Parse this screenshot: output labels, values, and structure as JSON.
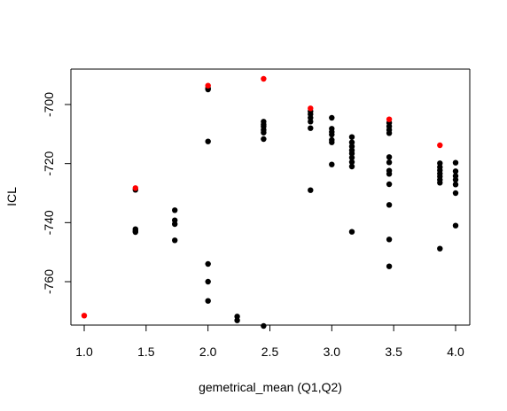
{
  "chart_data": {
    "type": "scatter",
    "xlabel": "gemetrical_mean (Q1,Q2)",
    "ylabel": "ICL",
    "xlim": [
      0.95,
      4.05
    ],
    "ylim": [
      -775,
      -688
    ],
    "x_ticks": [
      1.0,
      1.5,
      2.0,
      2.5,
      3.0,
      3.5,
      4.0
    ],
    "x_tick_labels": [
      "1.0",
      "1.5",
      "2.0",
      "2.5",
      "3.0",
      "3.5",
      "4.0"
    ],
    "y_ticks": [
      -760,
      -740,
      -720,
      -700
    ],
    "y_tick_labels": [
      "-760",
      "-740",
      "-720",
      "-700"
    ],
    "series": [
      {
        "color": "#000000",
        "points": [
          [
            1.414,
            -728.9
          ],
          [
            1.414,
            -742.2
          ],
          [
            1.414,
            -742.8
          ],
          [
            1.414,
            -743.2
          ],
          [
            1.732,
            -735.8
          ],
          [
            1.732,
            -739.2
          ],
          [
            1.732,
            -740.5
          ],
          [
            1.732,
            -746.0
          ],
          [
            2.0,
            -694.5
          ],
          [
            2.0,
            -694.9
          ],
          [
            2.0,
            -712.5
          ],
          [
            2.0,
            -754.0
          ],
          [
            2.0,
            -760.0
          ],
          [
            2.0,
            -766.5
          ],
          [
            2.236,
            -771.8
          ],
          [
            2.236,
            -773.1
          ],
          [
            2.449,
            -705.8
          ],
          [
            2.449,
            -706.8
          ],
          [
            2.449,
            -707.5
          ],
          [
            2.449,
            -708.6
          ],
          [
            2.449,
            -709.5
          ],
          [
            2.449,
            -711.7
          ],
          [
            2.449,
            -775.0
          ],
          [
            2.828,
            -702.3
          ],
          [
            2.828,
            -703.3
          ],
          [
            2.828,
            -704.5
          ],
          [
            2.828,
            -705.8
          ],
          [
            2.828,
            -708.0
          ],
          [
            2.828,
            -729.0
          ],
          [
            3.0,
            -704.5
          ],
          [
            3.0,
            -708.2
          ],
          [
            3.0,
            -709.3
          ],
          [
            3.0,
            -710.2
          ],
          [
            3.0,
            -712.0
          ],
          [
            3.0,
            -712.8
          ],
          [
            3.0,
            -720.3
          ],
          [
            3.162,
            -711.0
          ],
          [
            3.162,
            -712.8
          ],
          [
            3.162,
            -714.2
          ],
          [
            3.162,
            -715.5
          ],
          [
            3.162,
            -716.6
          ],
          [
            3.162,
            -718.0
          ],
          [
            3.162,
            -719.5
          ],
          [
            3.162,
            -721.0
          ],
          [
            3.162,
            -743.1
          ],
          [
            3.464,
            -706.2
          ],
          [
            3.464,
            -707.4
          ],
          [
            3.464,
            -708.6
          ],
          [
            3.464,
            -709.7
          ],
          [
            3.464,
            -717.8
          ],
          [
            3.464,
            -719.6
          ],
          [
            3.464,
            -722.4
          ],
          [
            3.464,
            -723.5
          ],
          [
            3.464,
            -727.0
          ],
          [
            3.464,
            -734.0
          ],
          [
            3.464,
            -745.7
          ],
          [
            3.464,
            -754.8
          ],
          [
            3.873,
            -719.9
          ],
          [
            3.873,
            -721.2
          ],
          [
            3.873,
            -722.3
          ],
          [
            3.873,
            -723.4
          ],
          [
            3.873,
            -724.4
          ],
          [
            3.873,
            -725.5
          ],
          [
            3.873,
            -726.5
          ],
          [
            3.873,
            -748.8
          ],
          [
            4.0,
            -719.7
          ],
          [
            4.0,
            -722.6
          ],
          [
            4.0,
            -724.2
          ],
          [
            4.0,
            -725.5
          ],
          [
            4.0,
            -727.1
          ],
          [
            4.0,
            -730.0
          ],
          [
            4.0,
            -741.0
          ]
        ]
      },
      {
        "color": "#ff0000",
        "points": [
          [
            1.0,
            -771.5
          ],
          [
            1.414,
            -728.3
          ],
          [
            2.0,
            -693.6
          ],
          [
            2.449,
            -691.3
          ],
          [
            2.828,
            -701.3
          ],
          [
            3.464,
            -705.0
          ],
          [
            3.873,
            -713.8
          ]
        ]
      }
    ]
  }
}
